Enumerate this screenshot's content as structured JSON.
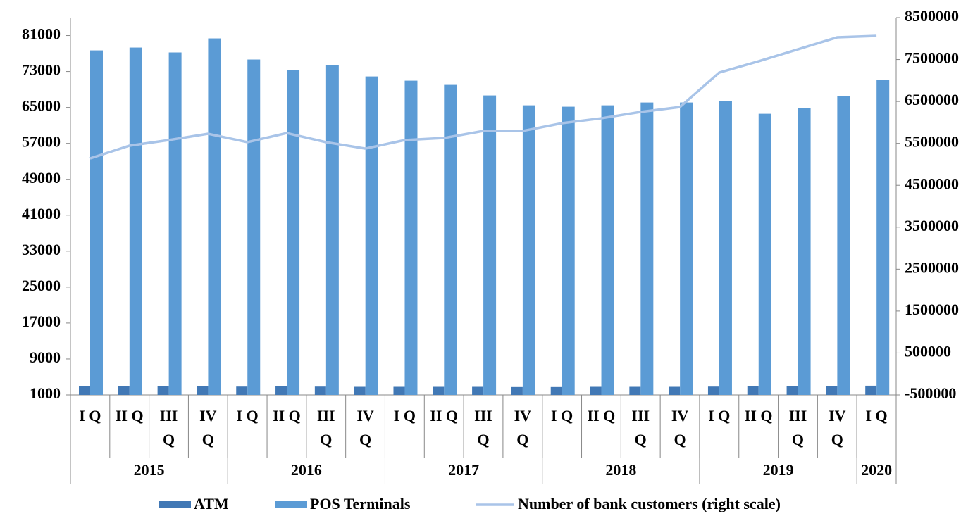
{
  "chart_data": {
    "type": "bar",
    "categories": [
      "I Q",
      "II Q",
      "III Q",
      "IV Q",
      "I Q",
      "II Q",
      "III Q",
      "IV Q",
      "I Q",
      "II Q",
      "III Q",
      "IV Q",
      "I Q",
      "II Q",
      "III Q",
      "IV Q",
      "I Q",
      "II Q",
      "III Q",
      "IV Q",
      "I Q"
    ],
    "groups": [
      {
        "name": "2015",
        "count": 4
      },
      {
        "name": "2016",
        "count": 4
      },
      {
        "name": "2017",
        "count": 4
      },
      {
        "name": "2018",
        "count": 4
      },
      {
        "name": "2019",
        "count": 4
      },
      {
        "name": "2020",
        "count": 1
      }
    ],
    "series": [
      {
        "name": "ATM",
        "color": "#4178b5",
        "values": [
          2900,
          2950,
          2950,
          3000,
          2850,
          2900,
          2850,
          2800,
          2800,
          2800,
          2800,
          2750,
          2750,
          2800,
          2800,
          2800,
          2850,
          2900,
          2900,
          3000,
          3050
        ]
      },
      {
        "name": "POS Terminals",
        "color": "#5b9bd5",
        "values": [
          77700,
          78330,
          77240,
          80370,
          75670,
          73310,
          74410,
          71900,
          70960,
          70020,
          67670,
          65470,
          65160,
          65470,
          66100,
          66100,
          66410,
          63590,
          64840,
          67510,
          71120
        ]
      },
      {
        "name": "Number of bank customers (right scale)",
        "color": "#a9c4e8",
        "axis": "y2",
        "values": [
          5141000,
          5444000,
          5578000,
          5729000,
          5528000,
          5746000,
          5528000,
          5376000,
          5578000,
          5628000,
          5796000,
          5796000,
          5981000,
          6098000,
          6250000,
          6367000,
          7190000,
          7458000,
          7744000,
          8029000,
          8063000
        ]
      }
    ],
    "ylim": [
      1000,
      85000
    ],
    "yticks": [
      1000,
      9000,
      17000,
      25000,
      33000,
      41000,
      49000,
      57000,
      65000,
      73000,
      81000
    ],
    "y2lim": [
      -500000,
      8500000
    ],
    "y2ticks": [
      -500000,
      500000,
      1500000,
      2500000,
      3500000,
      4500000,
      5500000,
      6500000,
      7500000,
      8500000
    ],
    "grid": false,
    "legend": "bottom"
  }
}
